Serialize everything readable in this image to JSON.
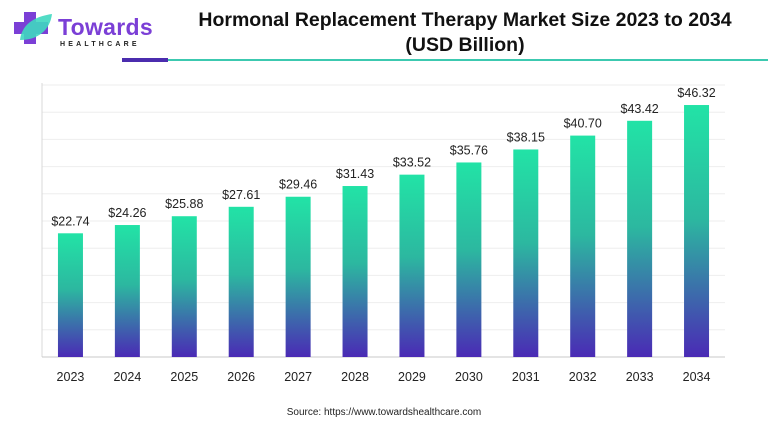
{
  "brand": {
    "name": "Towards",
    "sub": "HEALTHCARE",
    "colors": {
      "purple": "#7b3fd6",
      "teal": "#3cc9b0",
      "dark": "#4b2cae"
    }
  },
  "title": "Hormonal Replacement Therapy Market Size 2023 to 2034",
  "subtitle": "(USD Billion)",
  "source": "Source: https://www.towardshealthcare.com",
  "chart_data": {
    "type": "bar",
    "title": "Hormonal Replacement Therapy Market Size 2023 to 2034 (USD Billion)",
    "xlabel": "",
    "ylabel": "",
    "categories": [
      "2023",
      "2024",
      "2025",
      "2026",
      "2027",
      "2028",
      "2029",
      "2030",
      "2031",
      "2032",
      "2033",
      "2034"
    ],
    "values": [
      22.74,
      24.26,
      25.88,
      27.61,
      29.46,
      31.43,
      33.52,
      35.76,
      38.15,
      40.7,
      43.42,
      46.32
    ],
    "labels": [
      "$22.74",
      "$24.26",
      "$25.88",
      "$27.61",
      "$29.46",
      "$31.43",
      "$33.52",
      "$35.76",
      "$38.15",
      "$40.70",
      "$43.42",
      "$46.32"
    ],
    "ylim": [
      0,
      50
    ],
    "grid": true,
    "gradient": {
      "top": "#22e3a6",
      "bottom": "#4a2ab5"
    }
  }
}
